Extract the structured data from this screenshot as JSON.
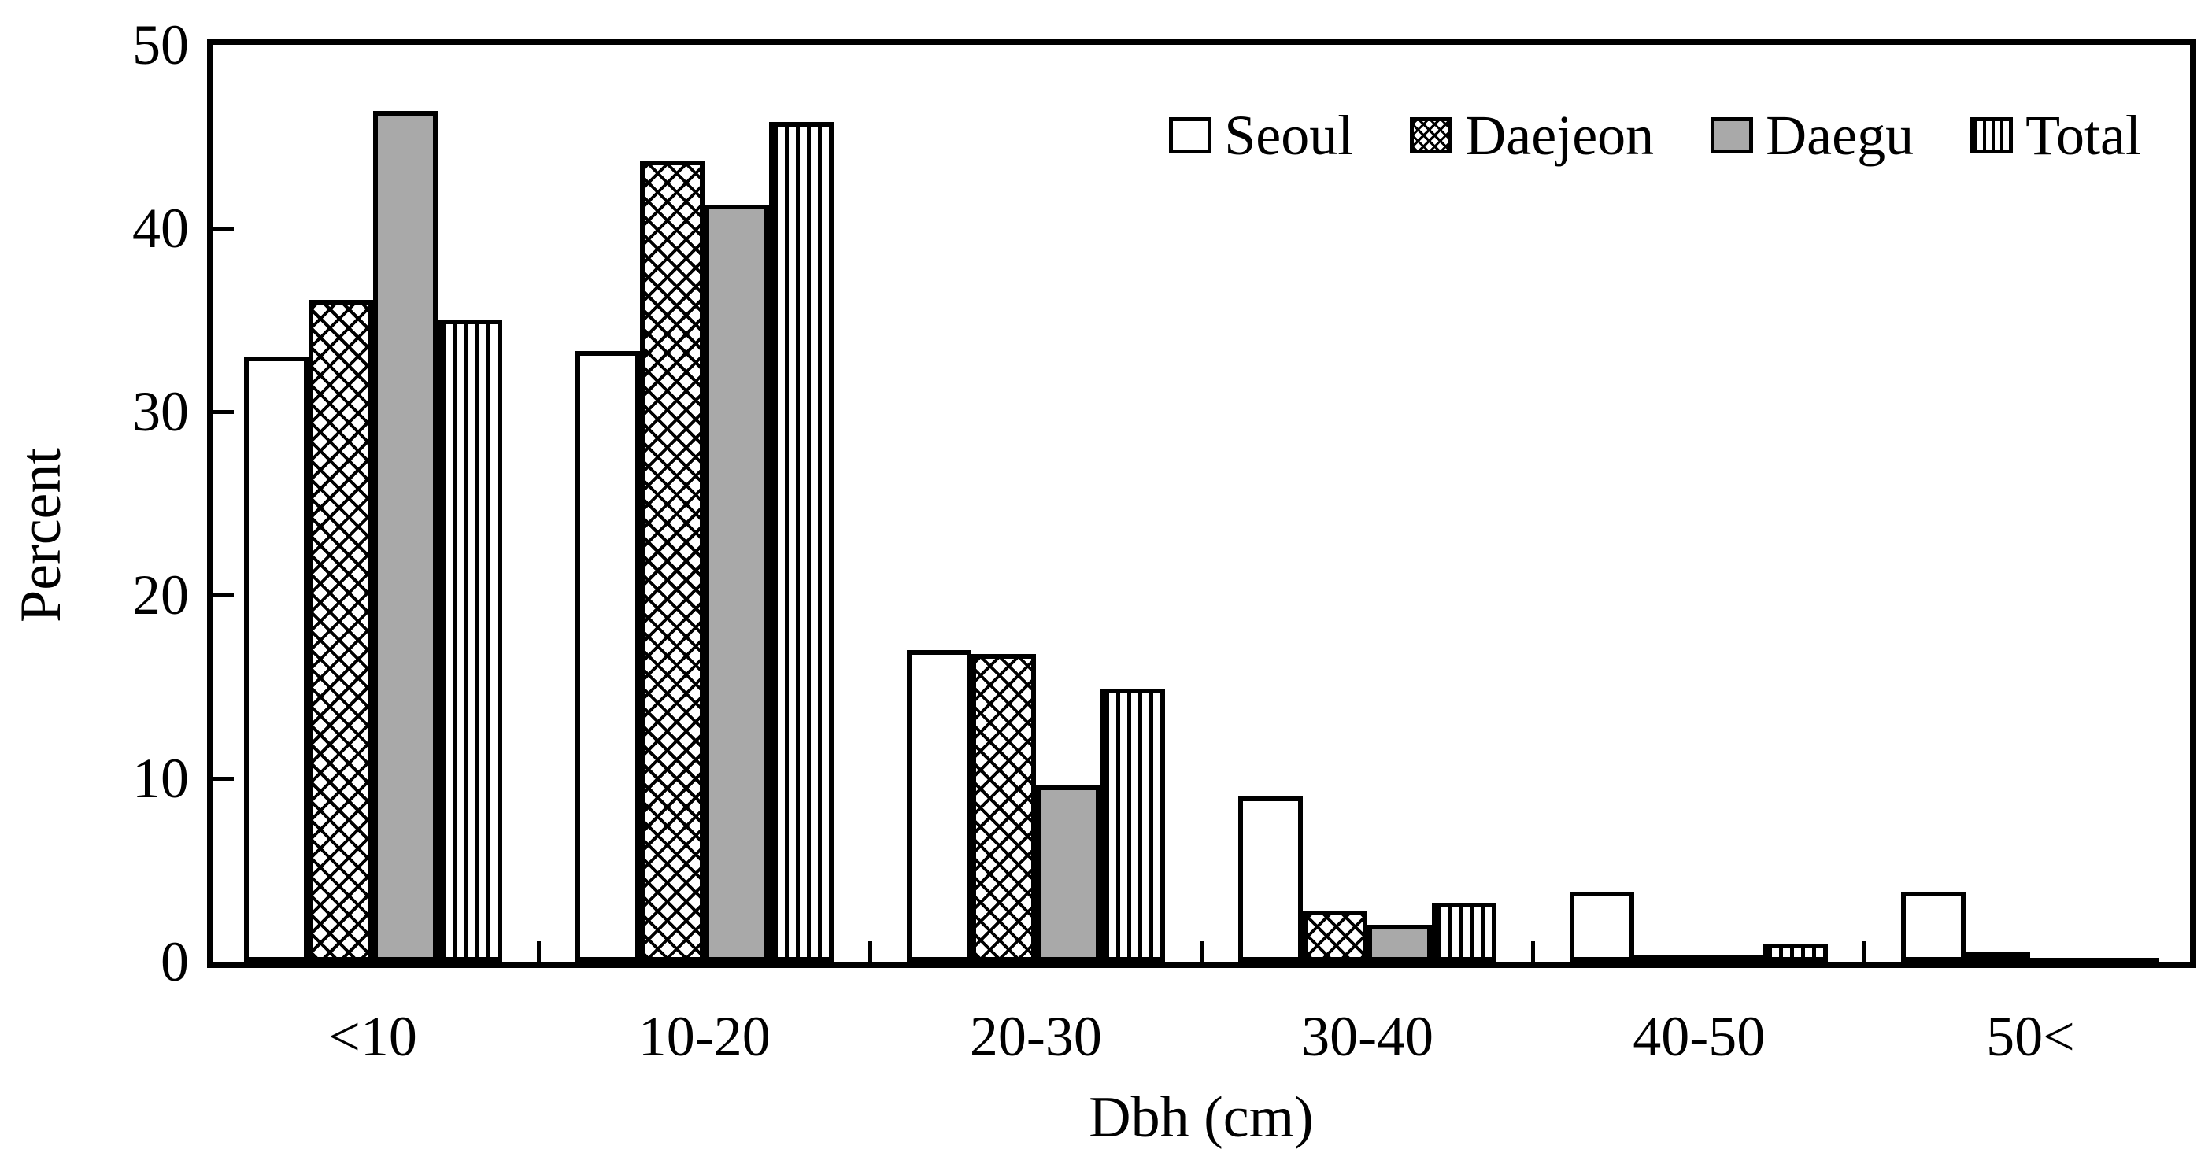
{
  "chart_data": {
    "type": "bar",
    "title": "",
    "xlabel": "Dbh (cm)",
    "ylabel": "Percent",
    "ylim": [
      0,
      50
    ],
    "yticks": [
      0,
      10,
      20,
      30,
      40,
      50
    ],
    "categories": [
      "<10",
      "10-20",
      "20-30",
      "30-40",
      "40-50",
      "50<"
    ],
    "series": [
      {
        "name": "Seoul",
        "pattern": "plain",
        "values": [
          33.0,
          33.3,
          17.0,
          9.0,
          3.8,
          3.8
        ]
      },
      {
        "name": "Daejeon",
        "pattern": "crosshatch",
        "values": [
          36.1,
          43.7,
          16.8,
          2.8,
          0.4,
          0.5
        ]
      },
      {
        "name": "Daegu",
        "pattern": "gray",
        "values": [
          46.4,
          41.3,
          9.6,
          2.0,
          0.4,
          0.2
        ]
      },
      {
        "name": "Total",
        "pattern": "stripes",
        "values": [
          35.0,
          45.8,
          14.9,
          3.2,
          1.0,
          0.2
        ]
      }
    ],
    "legend_position": "top-right-inside",
    "grid": false,
    "colors": {
      "ink": "#000000",
      "background": "#ffffff",
      "daegu_fill": "#a9a9a9"
    }
  }
}
